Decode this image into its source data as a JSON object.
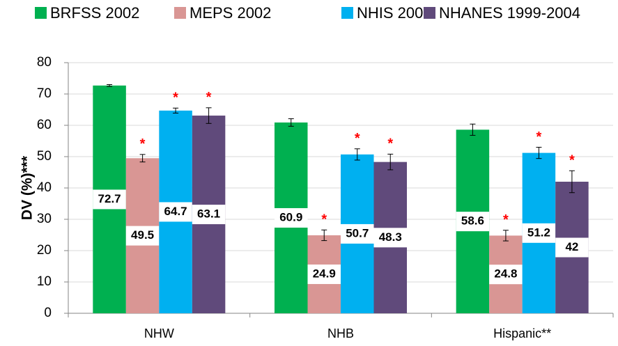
{
  "chart_data": {
    "type": "bar",
    "y_label": "DV (%)***",
    "categories": [
      "NHW",
      "NHB",
      "Hispanic**"
    ],
    "series": [
      {
        "name": "BRFSS 2002",
        "color": "#00b050",
        "values": [
          72.7,
          60.9,
          58.6
        ],
        "errors": [
          0.3,
          1.2,
          1.8
        ]
      },
      {
        "name": "MEPS 2002",
        "color": "#d99694",
        "values": [
          49.5,
          24.9,
          24.8
        ],
        "errors": [
          1.2,
          1.7,
          1.7
        ],
        "markers": [
          "*",
          "*",
          "*"
        ]
      },
      {
        "name": "NHIS 2002",
        "color": "#00b0f0",
        "values": [
          64.7,
          50.7,
          51.2
        ],
        "errors": [
          0.8,
          1.8,
          1.8
        ],
        "markers": [
          "*",
          "*",
          "*"
        ]
      },
      {
        "name": "NHANES 1999-2004",
        "color": "#604a7b",
        "values": [
          63.1,
          48.3,
          42
        ],
        "errors": [
          2.5,
          2.5,
          3.5
        ],
        "markers": [
          "*",
          "*",
          "*"
        ]
      }
    ],
    "ylim": [
      0,
      80
    ],
    "yticks": [
      0,
      10,
      20,
      30,
      40,
      50,
      60,
      70,
      80
    ],
    "grid": true,
    "legend": "top",
    "marker_color": "#ff0000"
  }
}
